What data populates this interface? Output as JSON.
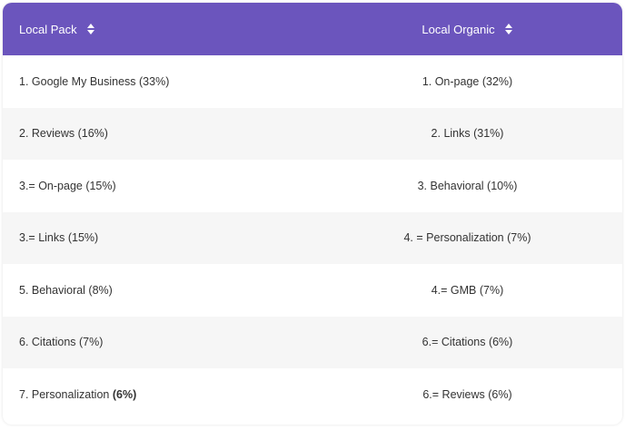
{
  "header": {
    "local_pack": "Local Pack",
    "local_organic": "Local Organic",
    "sort_icon": "sort-updown-icon"
  },
  "rows": [
    {
      "pack": "1. Google My Business (33%)",
      "organic": "1. On-page (32%)"
    },
    {
      "pack": "2. Reviews (16%)",
      "organic": "2. Links (31%)"
    },
    {
      "pack": "3.= On-page (15%)",
      "organic": "3. Behavioral (10%)"
    },
    {
      "pack": "3.= Links (15%)",
      "organic": "4. = Personalization (7%)"
    },
    {
      "pack": "5. Behavioral (8%)",
      "organic": "4.= GMB (7%)"
    },
    {
      "pack": "6. Citations (7%)",
      "organic": "6.= Citations (6%)"
    },
    {
      "pack_prefix": "7. Personalization ",
      "pack_bold": "(6%)",
      "organic": "6.= Reviews (6%)"
    }
  ],
  "colors": {
    "header_bg": "#6b55bd",
    "alt_row_bg": "#f6f6f6",
    "text": "#333333"
  }
}
